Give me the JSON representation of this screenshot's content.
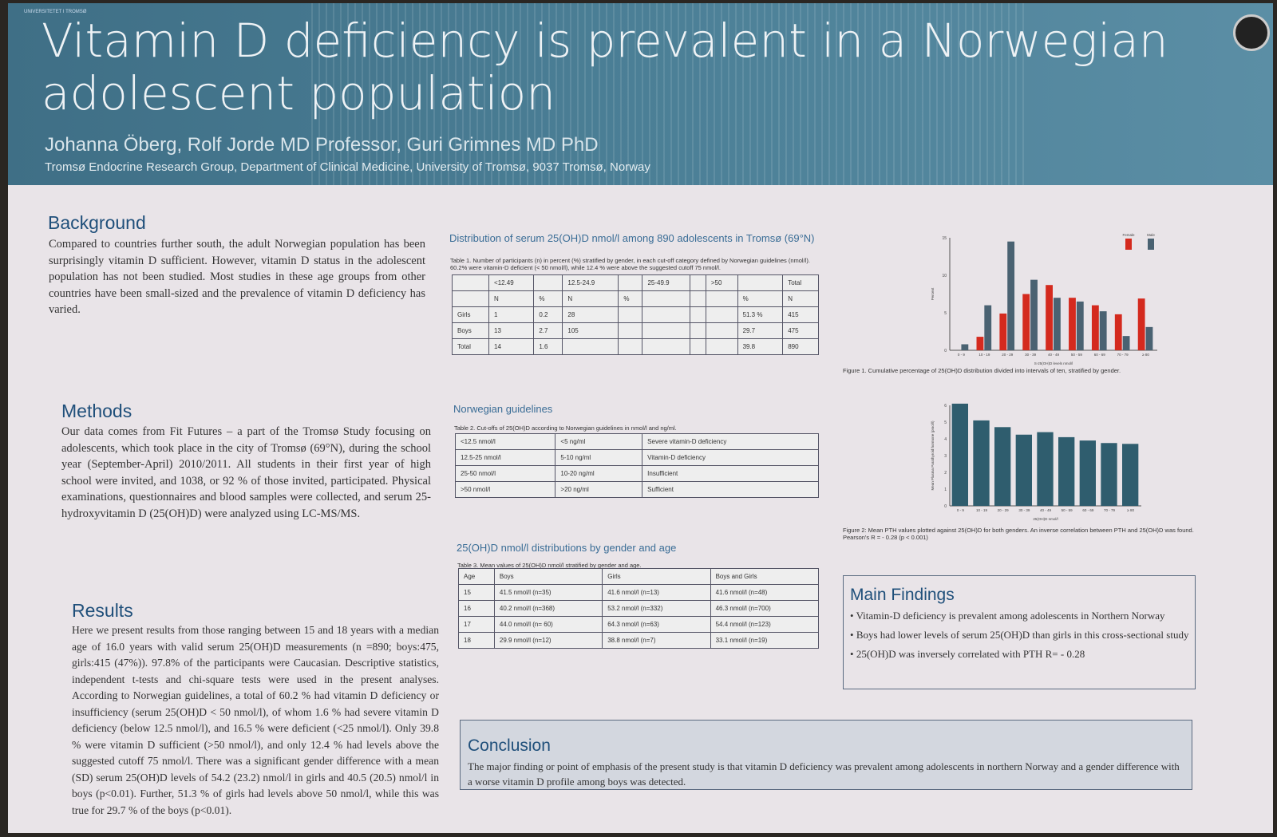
{
  "header": {
    "university": "UNIVERSITETET I TROMSØ",
    "title": "Vitamin D deficiency is prevalent in a Norwegian adolescent population",
    "authors": "Johanna Öberg, Rolf Jorde MD Professor, Guri Grimnes MD PhD",
    "affiliation": "Tromsø Endocrine Research Group, Department of Clinical Medicine, University of Tromsø, 9037 Tromsø, Norway"
  },
  "background": {
    "heading": "Background",
    "text": "Compared to countries further south, the adult Norwegian population has been surprisingly vitamin D sufficient. However, vitamin D status in the adolescent population has not been studied. Most studies in these age groups from other countries have been small-sized and the prevalence of vitamin D deficiency has varied."
  },
  "methods": {
    "heading": "Methods",
    "text": "Our data comes from Fit Futures – a part of the Tromsø Study focusing on adolescents, which took place in the city of Tromsø (69°N), during the school year (September-April) 2010/2011. All students in their first year of high school were invited, and 1038, or 92 % of those invited, participated. Physical examinations, questionnaires and blood samples were collected, and serum 25-hydroxyvitamin D (25(OH)D) were analyzed using LC-MS/MS."
  },
  "results": {
    "heading": "Results",
    "text": "Here we present results from those ranging between 15 and 18 years with a median age of 16.0 years with valid serum 25(OH)D measurements (n =890; boys:475, girls:415 (47%)). 97.8% of the participants were Caucasian. Descriptive statistics, independent t-tests and chi-square tests were used in the present analyses. According to Norwegian guidelines, a total of 60.2 % had vitamin D deficiency or insufficiency (serum 25(OH)D < 50 nmol/l), of whom 1.6 % had severe vitamin D deficiency (below 12.5 nmol/l), and 16.5 % were deficient (<25 nmol/l). Only 39.8 % were vitamin D sufficient (>50 nmol/l), and only 12.4 % had levels above the suggested cutoff 75 nmol/l. There was a significant gender difference with a mean (SD) serum 25(OH)D levels of 54.2 (23.2) nmol/l in girls and 40.5 (20.5) nmol/l in boys (p<0.01). Further, 51.3 % of girls had levels above 50 nmol/l, while this was true for 29.7 % of the boys (p<0.01)."
  },
  "table1": {
    "section": "Distribution of serum 25(OH)D nmol/l among 890 adolescents in Tromsø (69°N)",
    "caption": "Table 1. Number of participants (n) in percent (%) stratified by gender, in each cut-off category defined by Norwegian guidelines (nmol/l). 60.2% were vitamin-D deficient (< 50 nmol/l), while 12.4 % were above the suggested cutoff 75 nmol/l.",
    "rows": [
      [
        "",
        "<12.49",
        "",
        "12.5-24.9",
        "",
        "25-49.9",
        "",
        ">50",
        "",
        "Total"
      ],
      [
        "",
        "N",
        "%",
        "N",
        "%",
        "",
        "",
        "",
        "%",
        "N"
      ],
      [
        "Girls",
        "1",
        "0.2",
        "28",
        "",
        "",
        "",
        "",
        "51.3 %",
        "415"
      ],
      [
        "Boys",
        "13",
        "2.7",
        "105",
        "",
        "",
        "",
        "",
        "29.7",
        "475"
      ],
      [
        "Total",
        "14",
        "1.6",
        "",
        "",
        "",
        "",
        "",
        "39.8",
        "890"
      ]
    ]
  },
  "table2": {
    "section": "Norwegian guidelines",
    "caption": "Table 2. Cut-offs of 25(OH)D according to Norwegian guidelines in nmol/l and ng/ml.",
    "rows": [
      [
        "<12.5 nmol/l",
        "<5 ng/ml",
        "Severe vitamin-D deficiency"
      ],
      [
        "12.5-25 nmol/l",
        "5-10 ng/ml",
        "Vitamin-D deficiency"
      ],
      [
        "25-50 nmol/l",
        "10-20 ng/ml",
        "Insufficient"
      ],
      [
        ">50 nmol/l",
        ">20 ng/ml",
        "Sufficient"
      ]
    ]
  },
  "table3": {
    "section": "25(OH)D nmol/l distributions by gender and age",
    "caption": "Table 3. Mean values of 25(OH)D nmol/l stratified by gender and age.",
    "rows": [
      [
        "Age",
        "Boys",
        "Girls",
        "Boys and Girls"
      ],
      [
        "15",
        "41.5 nmol/l (n=35)",
        "41.6 nmol/l (n=13)",
        "41.6 nmol/l (n=48)"
      ],
      [
        "16",
        "40.2 nmol/l (n=368)",
        "53.2 nmol/l (n=332)",
        "46.3 nmol/l (n=700)"
      ],
      [
        "17",
        "44.0 nmol/l (n= 60)",
        "64.3 nmol/l (n=63)",
        "54.4 nmol/l (n=123)"
      ],
      [
        "18",
        "29.9 nmol/l (n=12)",
        "38.8 nmol/l (n=7)",
        "33.1 nmol/l (n=19)"
      ]
    ]
  },
  "figure1_caption": "Figure 1. Cumulative percentage of 25(OH)D distribution divided into intervals of ten, stratified by gender.",
  "figure2_caption": "Figure 2: Mean PTH values plotted against 25(OH)D for both genders. An inverse correlation between PTH and 25(OH)D was found. Pearson's R = - 0.28 (p < 0.001)",
  "findings": {
    "heading": "Main Findings",
    "items": [
      "Vitamin-D deficiency is prevalent among adolescents in Northern Norway",
      "Boys had lower levels of serum 25(OH)D than girls in this cross-sectional study",
      "25(OH)D was inversely correlated with PTH R= - 0.28"
    ]
  },
  "conclusion": {
    "heading": "Conclusion",
    "text": "The major finding or point of emphasis of the present study is that vitamin D deficiency was prevalent among adolescents in northern Norway and a gender difference with a worse vitamin D profile among boys was detected."
  },
  "chart_data": [
    {
      "type": "bar",
      "xlabel": "S-25(OH)D levels nmol/l",
      "ylabel": "Percent",
      "ylim": [
        0,
        15
      ],
      "yticks": [
        0,
        5,
        10,
        15
      ],
      "legend": "top-right",
      "categories": [
        "0 - 9",
        "10 - 19",
        "20 - 29",
        "30 - 39",
        "40 - 49",
        "50 - 59",
        "60 - 69",
        "70 - 79",
        "≥ 80"
      ],
      "series": [
        {
          "name": "Female",
          "color": "#d42a1e",
          "values": [
            0,
            1.8,
            4.9,
            7.5,
            8.7,
            7.0,
            6.0,
            4.8,
            6.9
          ]
        },
        {
          "name": "Male",
          "color": "#4a6272",
          "values": [
            0.8,
            6.0,
            14.5,
            9.4,
            7.0,
            6.5,
            5.2,
            1.9,
            3.1
          ]
        }
      ]
    },
    {
      "type": "bar",
      "xlabel": "25(OH)D nmol/l",
      "ylabel": "Mean Plasma Parathyroid hormone (pmol/l)",
      "ylim": [
        0,
        6
      ],
      "yticks": [
        0,
        1,
        2,
        3,
        4,
        5,
        6
      ],
      "categories": [
        "0 - 9",
        "10 - 19",
        "20 - 29",
        "30 - 39",
        "40 - 49",
        "50 - 59",
        "60 - 69",
        "70 - 79",
        "≥ 80"
      ],
      "series": [
        {
          "color": "#2f5d6e",
          "values": [
            6.1,
            5.1,
            4.7,
            4.25,
            4.4,
            4.1,
            3.9,
            3.75,
            3.7
          ]
        }
      ]
    }
  ]
}
